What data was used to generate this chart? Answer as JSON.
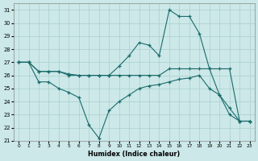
{
  "xlabel": "Humidex (Indice chaleur)",
  "xlim": [
    -0.5,
    23.5
  ],
  "ylim": [
    21,
    31.5
  ],
  "yticks": [
    21,
    22,
    23,
    24,
    25,
    26,
    27,
    28,
    29,
    30,
    31
  ],
  "xticks": [
    0,
    1,
    2,
    3,
    4,
    5,
    6,
    7,
    8,
    9,
    10,
    11,
    12,
    13,
    14,
    15,
    16,
    17,
    18,
    19,
    20,
    21,
    22,
    23
  ],
  "background_color": "#cce8e8",
  "grid_color": "#aacfcf",
  "line_color": "#1a6b6b",
  "line1_x": [
    0,
    1,
    2,
    3,
    4,
    5,
    6,
    7,
    8,
    9,
    10,
    11,
    12,
    13,
    14,
    15,
    16,
    17,
    18,
    19,
    20,
    21,
    22,
    23
  ],
  "line1_y": [
    27,
    27,
    26.3,
    26.3,
    26.3,
    26.0,
    26.0,
    26.0,
    26.0,
    26.0,
    26.7,
    27.5,
    28.5,
    28.3,
    27.5,
    31.0,
    30.5,
    30.5,
    29.2,
    26.5,
    24.5,
    23.0,
    22.5,
    22.5
  ],
  "line2_x": [
    0,
    1,
    2,
    3,
    4,
    5,
    6,
    7,
    8,
    9,
    10,
    11,
    12,
    13,
    14,
    15,
    16,
    17,
    18,
    19,
    20,
    21,
    22,
    23
  ],
  "line2_y": [
    27,
    27,
    26.3,
    26.3,
    26.3,
    26.1,
    26.0,
    26.0,
    26.0,
    26.0,
    26.0,
    26.0,
    26.0,
    26.0,
    26.0,
    26.5,
    26.5,
    26.5,
    26.5,
    26.5,
    26.5,
    26.5,
    22.5,
    22.5
  ],
  "line3_x": [
    0,
    1,
    2,
    3,
    4,
    5,
    6,
    7,
    8,
    9,
    10,
    11,
    12,
    13,
    14,
    15,
    16,
    17,
    18,
    19,
    20,
    21,
    22,
    23
  ],
  "line3_y": [
    27,
    27,
    25.5,
    25.5,
    25.0,
    24.7,
    24.3,
    22.2,
    21.2,
    23.3,
    24.0,
    24.5,
    25.0,
    25.2,
    25.3,
    25.5,
    25.7,
    25.8,
    26.0,
    25.0,
    24.5,
    23.5,
    22.5,
    22.5
  ]
}
